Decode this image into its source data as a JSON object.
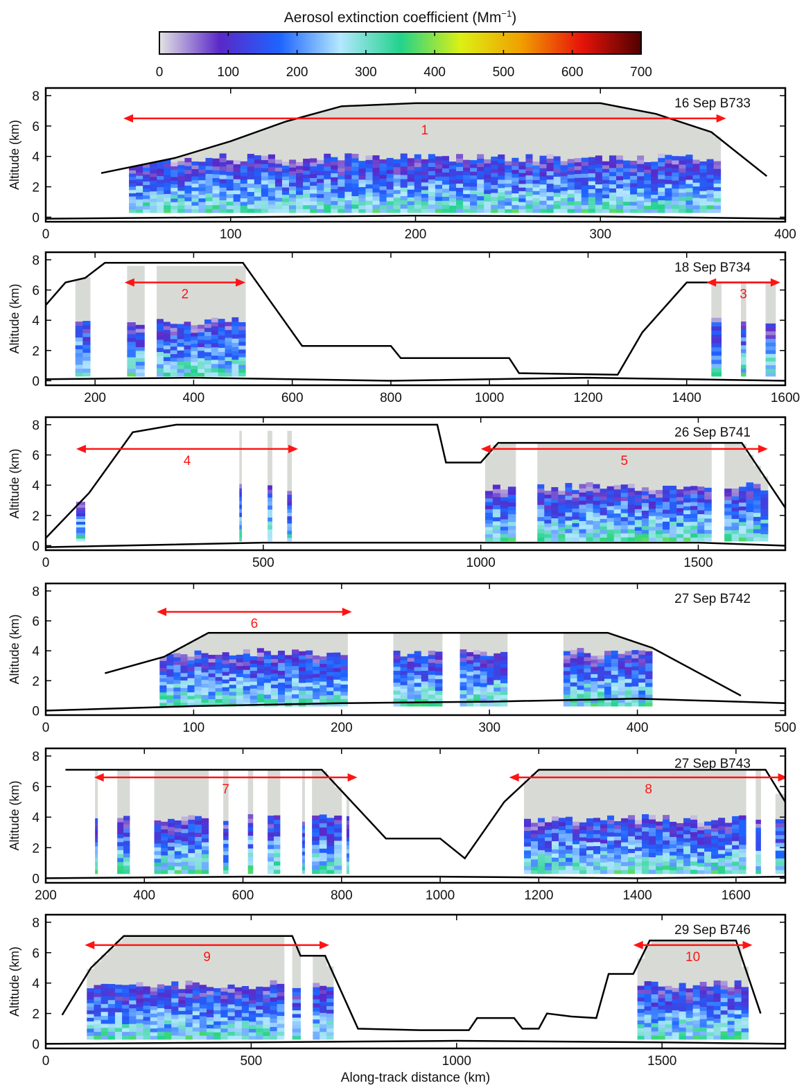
{
  "colorbar": {
    "title": "Aerosol extinction coefficient (Mm",
    "title_sup": "−1",
    "title_close": ")",
    "ticks": [
      "0",
      "100",
      "200",
      "300",
      "400",
      "500",
      "600",
      "700"
    ],
    "min": 0,
    "max": 700,
    "colors": [
      "#e3e3e3",
      "#5a28c8",
      "#1e64ff",
      "#b4e8ff",
      "#22d28c",
      "#dcf014",
      "#f0a000",
      "#e8140a",
      "#500000"
    ]
  },
  "colors": {
    "track": "#000000",
    "route_arrow": "#ff1414",
    "aircraft_obs": "#1e7a1e",
    "no_data": "#d8dbd5"
  },
  "xlabel": "Along-track distance (km)",
  "chart_data": [
    {
      "type": "heatmap",
      "label": "16 Sep B733",
      "xlim": [
        0,
        400
      ],
      "xticks": [
        "0",
        "100",
        "200",
        "300",
        "400"
      ],
      "ylabel": "Altitude (km)",
      "ylim": [
        -0.3,
        8.5
      ],
      "yticks": [
        "0",
        "2",
        "4",
        "6",
        "8"
      ],
      "grid": false,
      "data_ranges": [
        [
          45,
          365
        ]
      ],
      "track": [
        [
          30,
          2.9
        ],
        [
          70,
          3.9
        ],
        [
          100,
          5.0
        ],
        [
          130,
          6.3
        ],
        [
          160,
          7.3
        ],
        [
          200,
          7.5
        ],
        [
          300,
          7.5
        ],
        [
          330,
          6.8
        ],
        [
          360,
          5.6
        ],
        [
          390,
          2.7
        ]
      ],
      "surface": [
        [
          0,
          -0.1
        ],
        [
          100,
          0.0
        ],
        [
          200,
          0.1
        ],
        [
          300,
          0.05
        ],
        [
          400,
          -0.1
        ]
      ],
      "arrows": [
        {
          "label": "1",
          "x0": 42,
          "x1": 368,
          "y": 6.5
        }
      ]
    },
    {
      "type": "heatmap",
      "label": "18 Sep B734",
      "xlim": [
        100,
        1600
      ],
      "xticks": [
        "200",
        "400",
        "600",
        "800",
        "1000",
        "1200",
        "1400",
        "1600"
      ],
      "ylabel": "Altitude (km)",
      "ylim": [
        -0.3,
        8.5
      ],
      "yticks": [
        "0",
        "2",
        "4",
        "6",
        "8"
      ],
      "grid": false,
      "data_ranges": [
        [
          160,
          190
        ],
        [
          265,
          300
        ],
        [
          325,
          505
        ],
        [
          1450,
          1470
        ],
        [
          1510,
          1520
        ],
        [
          1560,
          1580
        ]
      ],
      "track": [
        [
          100,
          5.0
        ],
        [
          140,
          6.5
        ],
        [
          180,
          6.8
        ],
        [
          220,
          7.8
        ],
        [
          330,
          7.8
        ],
        [
          500,
          7.8
        ],
        [
          620,
          2.3
        ],
        [
          800,
          2.3
        ],
        [
          820,
          1.5
        ],
        [
          1040,
          1.5
        ],
        [
          1060,
          0.5
        ],
        [
          1260,
          0.4
        ],
        [
          1310,
          3.2
        ],
        [
          1400,
          6.5
        ],
        [
          1580,
          6.5
        ]
      ],
      "surface": [
        [
          100,
          0.1
        ],
        [
          400,
          0.2
        ],
        [
          800,
          0.0
        ],
        [
          1200,
          0.2
        ],
        [
          1600,
          0.0
        ]
      ],
      "arrows": [
        {
          "label": "2",
          "x0": 260,
          "x1": 505,
          "y": 6.5
        },
        {
          "label": "3",
          "x0": 1440,
          "x1": 1590,
          "y": 6.5
        }
      ]
    },
    {
      "type": "heatmap",
      "label": "26 Sep B741",
      "xlim": [
        0,
        1700
      ],
      "xticks": [
        "0",
        "500",
        "1000",
        "1500"
      ],
      "ylabel": "Altitude (km)",
      "ylim": [
        -0.3,
        8.5
      ],
      "yticks": [
        "0",
        "2",
        "4",
        "6",
        "8"
      ],
      "grid": false,
      "data_ranges": [
        [
          70,
          90
        ],
        [
          445,
          450
        ],
        [
          510,
          520
        ],
        [
          555,
          565
        ],
        [
          1010,
          1080
        ],
        [
          1130,
          1530
        ],
        [
          1560,
          1660
        ]
      ],
      "track": [
        [
          0,
          0.5
        ],
        [
          100,
          3.5
        ],
        [
          200,
          7.5
        ],
        [
          300,
          8.0
        ],
        [
          900,
          8.0
        ],
        [
          920,
          5.5
        ],
        [
          1000,
          5.5
        ],
        [
          1040,
          6.8
        ],
        [
          1600,
          6.8
        ],
        [
          1700,
          2.5
        ]
      ],
      "surface": [
        [
          0,
          -0.1
        ],
        [
          500,
          0.2
        ],
        [
          1000,
          0.2
        ],
        [
          1500,
          0.2
        ],
        [
          1700,
          0.0
        ]
      ],
      "arrows": [
        {
          "label": "4",
          "x0": 70,
          "x1": 580,
          "y": 6.4
        },
        {
          "label": "5",
          "x0": 1000,
          "x1": 1660,
          "y": 6.4
        }
      ]
    },
    {
      "type": "heatmap",
      "label": "27 Sep B742",
      "xlim": [
        0,
        500
      ],
      "xticks": [
        "0",
        "100",
        "200",
        "300",
        "400",
        "500"
      ],
      "ylabel": "Altitude (km)",
      "ylim": [
        -0.3,
        8.5
      ],
      "yticks": [
        "0",
        "2",
        "4",
        "6",
        "8"
      ],
      "grid": false,
      "data_ranges": [
        [
          77,
          204
        ],
        [
          235,
          268
        ],
        [
          280,
          312
        ],
        [
          350,
          410
        ]
      ],
      "track": [
        [
          40,
          2.5
        ],
        [
          80,
          3.6
        ],
        [
          110,
          5.2
        ],
        [
          380,
          5.2
        ],
        [
          410,
          4.2
        ],
        [
          470,
          1.0
        ]
      ],
      "surface": [
        [
          0,
          0.0
        ],
        [
          100,
          0.3
        ],
        [
          200,
          0.5
        ],
        [
          300,
          0.6
        ],
        [
          400,
          0.8
        ],
        [
          500,
          0.5
        ]
      ],
      "arrows": [
        {
          "label": "6",
          "x0": 75,
          "x1": 207,
          "y": 6.6
        }
      ]
    },
    {
      "type": "heatmap",
      "label": "27 Sep B743",
      "xlim": [
        200,
        1700
      ],
      "xticks": [
        "200",
        "400",
        "600",
        "800",
        "1000",
        "1200",
        "1400",
        "1600"
      ],
      "ylabel": "Altitude (km)",
      "ylim": [
        -0.3,
        8.5
      ],
      "yticks": [
        "0",
        "2",
        "4",
        "6",
        "8"
      ],
      "grid": false,
      "data_ranges": [
        [
          300,
          305
        ],
        [
          345,
          370
        ],
        [
          420,
          530
        ],
        [
          560,
          570
        ],
        [
          610,
          620
        ],
        [
          650,
          675
        ],
        [
          720,
          725
        ],
        [
          740,
          800
        ],
        [
          810,
          815
        ],
        [
          1170,
          1620
        ],
        [
          1640,
          1650
        ],
        [
          1680,
          1700
        ]
      ],
      "track": [
        [
          240,
          7.1
        ],
        [
          760,
          7.1
        ],
        [
          890,
          2.6
        ],
        [
          1000,
          2.6
        ],
        [
          1050,
          1.3
        ],
        [
          1130,
          5.0
        ],
        [
          1200,
          7.1
        ],
        [
          1660,
          7.1
        ],
        [
          1700,
          5.0
        ]
      ],
      "surface": [
        [
          200,
          0.0
        ],
        [
          600,
          0.1
        ],
        [
          1000,
          0.1
        ],
        [
          1400,
          0.0
        ],
        [
          1700,
          0.1
        ]
      ],
      "arrows": [
        {
          "label": "7",
          "x0": 298,
          "x1": 832,
          "y": 6.6
        },
        {
          "label": "8",
          "x0": 1140,
          "x1": 1705,
          "y": 6.6
        }
      ]
    },
    {
      "type": "heatmap",
      "label": "29 Sep B746",
      "xlim": [
        0,
        1800
      ],
      "xticks": [
        "0",
        "500",
        "1000",
        "1500"
      ],
      "ylabel": "Altitude (km)",
      "ylim": [
        -0.3,
        8.5
      ],
      "yticks": [
        "0",
        "2",
        "4",
        "6",
        "8"
      ],
      "grid": false,
      "data_ranges": [
        [
          100,
          580
        ],
        [
          600,
          620
        ],
        [
          650,
          700
        ],
        [
          1440,
          1710
        ]
      ],
      "track": [
        [
          40,
          1.9
        ],
        [
          110,
          5.0
        ],
        [
          190,
          7.1
        ],
        [
          600,
          7.1
        ],
        [
          620,
          5.8
        ],
        [
          680,
          5.8
        ],
        [
          760,
          1.0
        ],
        [
          910,
          0.9
        ],
        [
          1030,
          0.9
        ],
        [
          1050,
          1.7
        ],
        [
          1140,
          1.7
        ],
        [
          1160,
          1.0
        ],
        [
          1200,
          1.0
        ],
        [
          1220,
          2.0
        ],
        [
          1280,
          1.8
        ],
        [
          1340,
          1.7
        ],
        [
          1370,
          4.6
        ],
        [
          1430,
          4.6
        ],
        [
          1470,
          6.8
        ],
        [
          1680,
          6.8
        ],
        [
          1740,
          2.0
        ]
      ],
      "surface": [
        [
          0,
          0.0
        ],
        [
          500,
          0.1
        ],
        [
          1000,
          0.2
        ],
        [
          1500,
          0.1
        ],
        [
          1800,
          0.0
        ]
      ],
      "arrows": [
        {
          "label": "9",
          "x0": 95,
          "x1": 690,
          "y": 6.5
        },
        {
          "label": "10",
          "x0": 1430,
          "x1": 1720,
          "y": 6.5
        }
      ]
    }
  ]
}
